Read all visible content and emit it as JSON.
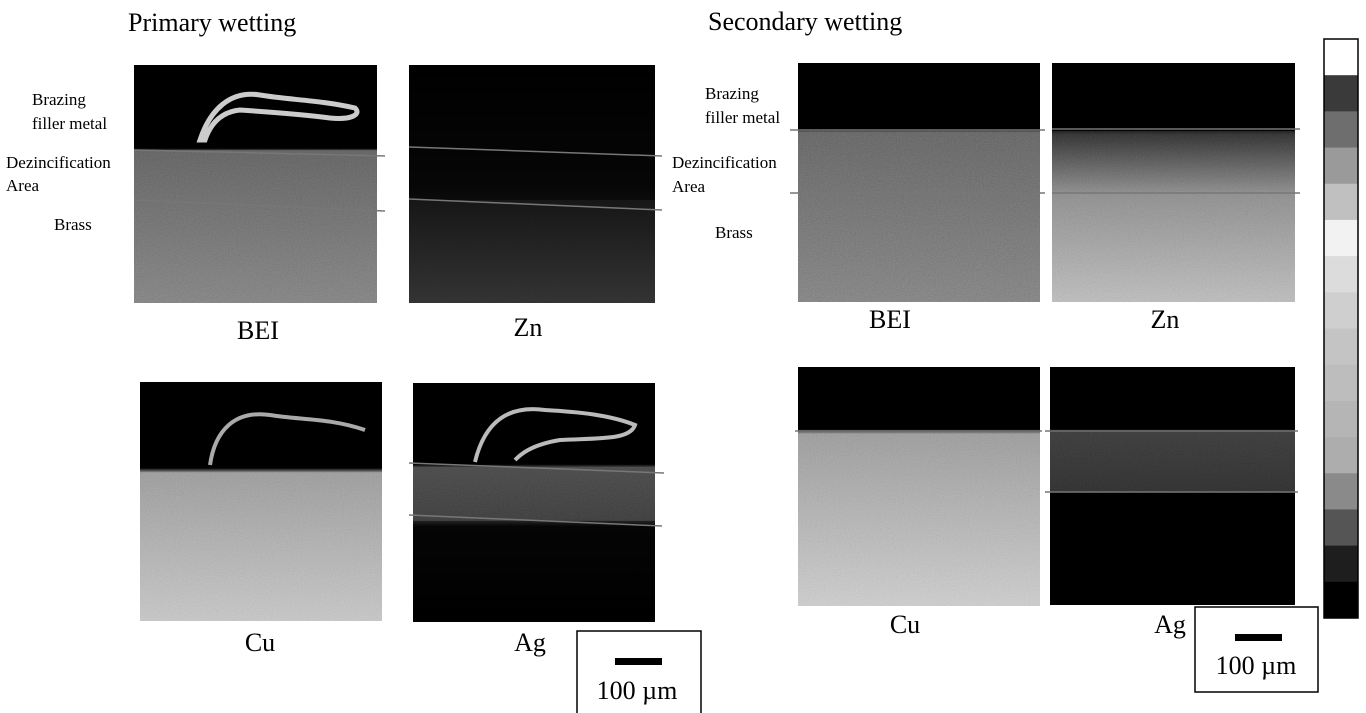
{
  "primary": {
    "title": "Primary wetting",
    "side_labels": {
      "brazing": [
        "Brazing",
        "filler metal"
      ],
      "dezincification": [
        "Dezincification",
        "Area"
      ],
      "brass": "Brass"
    },
    "panels": [
      "BEI",
      "Zn",
      "Cu",
      "Ag"
    ],
    "scale_bar": "100 µm"
  },
  "secondary": {
    "title": "Secondary wetting",
    "side_labels": {
      "brazing": [
        "Brazing",
        "filler metal"
      ],
      "dezincification": [
        "Dezincification",
        "Area"
      ],
      "brass": "Brass"
    },
    "panels": [
      "BEI",
      "Zn",
      "Cu",
      "Ag"
    ],
    "scale_bar": "100 µm"
  }
}
